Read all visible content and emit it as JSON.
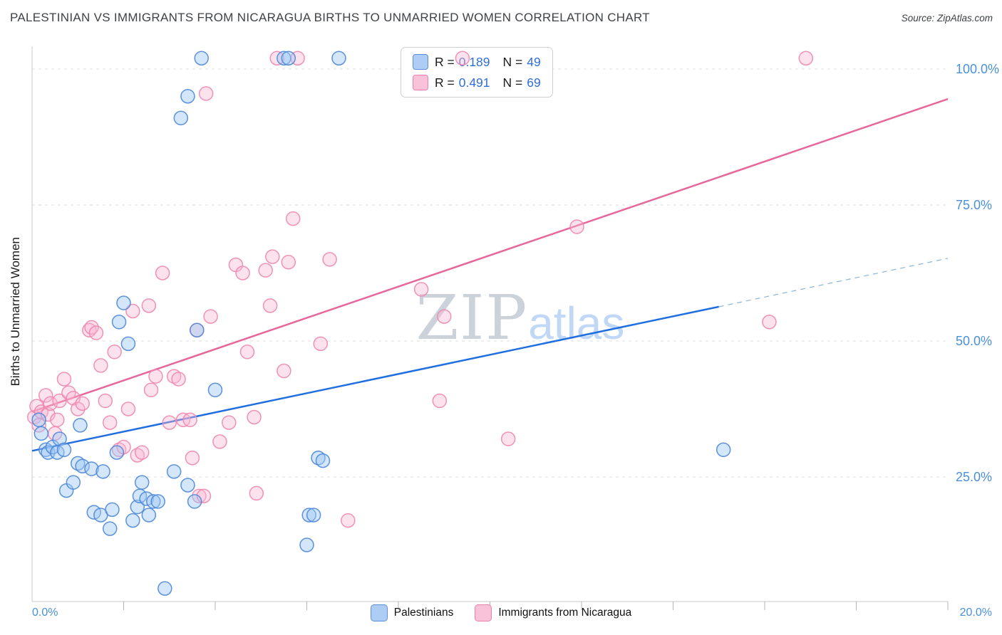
{
  "header": {
    "title": "PALESTINIAN VS IMMIGRANTS FROM NICARAGUA BIRTHS TO UNMARRIED WOMEN CORRELATION CHART",
    "source": "Source: ZipAtlas.com"
  },
  "watermark": {
    "zip": "ZIP",
    "atlas": "atlas"
  },
  "legend": {
    "r_prefix": "R =",
    "n_prefix": "N ="
  },
  "chart_data": {
    "type": "scatter",
    "title": "PALESTINIAN VS IMMIGRANTS FROM NICARAGUA BIRTHS TO UNMARRIED WOMEN CORRELATION CHART",
    "ylabel": "Births to Unmarried Women",
    "xlabel": "",
    "xlim": [
      0,
      20
    ],
    "ylim": [
      0,
      105
    ],
    "x_units": "percent",
    "y_units": "percent",
    "grid": "horizontal-dashed",
    "legend_position": "top-center",
    "x_tick_step": 2,
    "x_axis_labels": {
      "left": "0.0%",
      "right": "20.0%"
    },
    "y_ticks": [
      {
        "value": 100,
        "label": "100.0%"
      },
      {
        "value": 75,
        "label": "75.0%"
      },
      {
        "value": 50,
        "label": "50.0%"
      },
      {
        "value": 25,
        "label": "25.0%"
      }
    ],
    "series": [
      {
        "name": "Palestinians",
        "R": "0.189",
        "N": "49",
        "fill": "#9ec7f5",
        "stroke": "#4c86d8",
        "line_color": "#1f6fe0",
        "trend": {
          "x0": 0,
          "y0": 29.8,
          "x1": 15.0,
          "y1": 56.3,
          "dash_x1": 20,
          "dash_y1": 65.2
        },
        "points": [
          [
            0.15,
            35.5
          ],
          [
            0.2,
            33
          ],
          [
            0.3,
            30
          ],
          [
            0.35,
            29.5
          ],
          [
            0.45,
            30.5
          ],
          [
            0.55,
            29.5
          ],
          [
            0.6,
            32
          ],
          [
            0.7,
            30
          ],
          [
            0.75,
            22.5
          ],
          [
            0.9,
            24
          ],
          [
            1.0,
            27.5
          ],
          [
            1.05,
            34.5
          ],
          [
            1.1,
            27
          ],
          [
            1.3,
            26.5
          ],
          [
            1.35,
            18.5
          ],
          [
            1.5,
            18
          ],
          [
            1.55,
            26
          ],
          [
            1.7,
            15.5
          ],
          [
            1.75,
            19
          ],
          [
            1.85,
            29.5
          ],
          [
            1.9,
            53.5
          ],
          [
            2.0,
            57
          ],
          [
            2.1,
            49.5
          ],
          [
            2.2,
            17
          ],
          [
            2.3,
            19.5
          ],
          [
            2.35,
            21.5
          ],
          [
            2.4,
            24
          ],
          [
            2.5,
            21
          ],
          [
            2.55,
            18
          ],
          [
            2.65,
            20.5
          ],
          [
            2.75,
            20.5
          ],
          [
            2.9,
            4.5
          ],
          [
            3.1,
            26
          ],
          [
            3.25,
            91
          ],
          [
            3.4,
            95
          ],
          [
            3.4,
            23.5
          ],
          [
            3.55,
            20.5
          ],
          [
            3.6,
            52
          ],
          [
            3.7,
            102
          ],
          [
            4.0,
            41
          ],
          [
            5.5,
            102
          ],
          [
            5.6,
            102
          ],
          [
            6.0,
            12.5
          ],
          [
            6.05,
            18
          ],
          [
            6.15,
            18
          ],
          [
            6.25,
            28.5
          ],
          [
            6.35,
            28
          ],
          [
            6.7,
            102
          ],
          [
            15.1,
            30
          ]
        ]
      },
      {
        "name": "Immigrants from Nicaragua",
        "R": "0.491",
        "N": "69",
        "fill": "#f7b6d2",
        "stroke": "#ee86af",
        "line_color": "#e8679a",
        "trend": {
          "x0": 0,
          "y0": 37.0,
          "x1": 20,
          "y1": 94.5
        },
        "points": [
          [
            0.05,
            36
          ],
          [
            0.1,
            38
          ],
          [
            0.15,
            34.5
          ],
          [
            0.2,
            37
          ],
          [
            0.3,
            40
          ],
          [
            0.35,
            36.5
          ],
          [
            0.4,
            38.5
          ],
          [
            0.5,
            33
          ],
          [
            0.55,
            35.5
          ],
          [
            0.6,
            39
          ],
          [
            0.7,
            43
          ],
          [
            0.8,
            40.5
          ],
          [
            0.9,
            39.5
          ],
          [
            1.0,
            37.5
          ],
          [
            1.1,
            38.5
          ],
          [
            1.25,
            52
          ],
          [
            1.3,
            52.5
          ],
          [
            1.4,
            51.5
          ],
          [
            1.5,
            45.5
          ],
          [
            1.6,
            39
          ],
          [
            1.7,
            35
          ],
          [
            1.8,
            48
          ],
          [
            1.9,
            30
          ],
          [
            2.0,
            30.5
          ],
          [
            2.1,
            37.5
          ],
          [
            2.2,
            55.5
          ],
          [
            2.3,
            29
          ],
          [
            2.4,
            29.5
          ],
          [
            2.55,
            56.5
          ],
          [
            2.6,
            41
          ],
          [
            2.7,
            43.5
          ],
          [
            2.85,
            62.5
          ],
          [
            3.0,
            35
          ],
          [
            3.1,
            43.5
          ],
          [
            3.2,
            43
          ],
          [
            3.3,
            35.5
          ],
          [
            3.45,
            35.5
          ],
          [
            3.5,
            28.5
          ],
          [
            3.6,
            52
          ],
          [
            3.65,
            21.5
          ],
          [
            3.75,
            21.5
          ],
          [
            3.8,
            95.5
          ],
          [
            3.9,
            54.5
          ],
          [
            4.1,
            31.5
          ],
          [
            4.3,
            35
          ],
          [
            4.45,
            64
          ],
          [
            4.6,
            62.5
          ],
          [
            4.7,
            48
          ],
          [
            4.85,
            36
          ],
          [
            4.9,
            22
          ],
          [
            5.1,
            63
          ],
          [
            5.2,
            56.5
          ],
          [
            5.25,
            65.5
          ],
          [
            5.35,
            102
          ],
          [
            5.5,
            44.5
          ],
          [
            5.6,
            64.5
          ],
          [
            5.7,
            72.5
          ],
          [
            5.8,
            102
          ],
          [
            6.3,
            49.5
          ],
          [
            6.5,
            65
          ],
          [
            6.9,
            17
          ],
          [
            8.5,
            59.5
          ],
          [
            8.9,
            39
          ],
          [
            9.0,
            54.5
          ],
          [
            9.4,
            102
          ],
          [
            10.4,
            32
          ],
          [
            11.9,
            71
          ],
          [
            16.1,
            53.5
          ],
          [
            16.9,
            102
          ]
        ]
      }
    ]
  }
}
